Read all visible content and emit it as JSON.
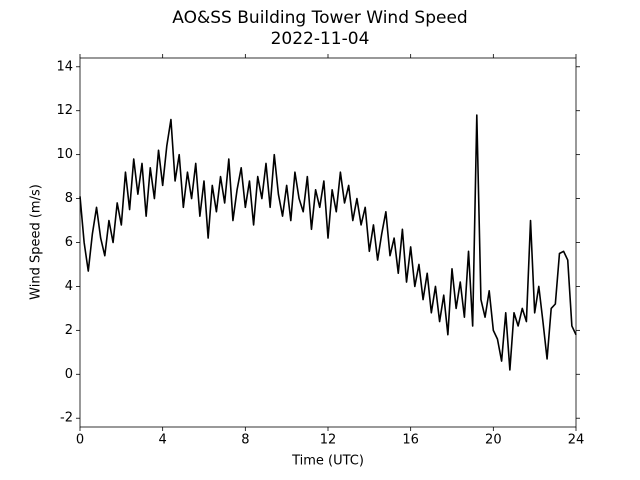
{
  "chart_data": {
    "type": "line",
    "title": "AO&SS Building Tower Wind Speed",
    "subtitle": "2022-11-04",
    "x_label": "Time (UTC)",
    "y_label": "Wind Speed (m/s)",
    "xlim": [
      0,
      24
    ],
    "xticks": [
      0,
      4,
      8,
      12,
      16,
      20,
      24
    ],
    "ylim": [
      -2.4,
      14.4
    ],
    "yticks": [
      -2,
      0,
      2,
      4,
      6,
      8,
      10,
      12,
      14
    ],
    "x": [
      0,
      0.2,
      0.4,
      0.6,
      0.8,
      1,
      1.2,
      1.4,
      1.6,
      1.8,
      2,
      2.2,
      2.4,
      2.6,
      2.8,
      3,
      3.2,
      3.4,
      3.6,
      3.8,
      4,
      4.2,
      4.4,
      4.6,
      4.8,
      5,
      5.2,
      5.4,
      5.6,
      5.8,
      6,
      6.2,
      6.4,
      6.6,
      6.8,
      7,
      7.2,
      7.4,
      7.6,
      7.8,
      8,
      8.2,
      8.4,
      8.6,
      8.8,
      9,
      9.2,
      9.4,
      9.6,
      9.8,
      10,
      10.2,
      10.4,
      10.6,
      10.8,
      11,
      11.2,
      11.4,
      11.6,
      11.8,
      12,
      12.2,
      12.4,
      12.6,
      12.8,
      13,
      13.2,
      13.4,
      13.6,
      13.8,
      14,
      14.2,
      14.4,
      14.6,
      14.8,
      15,
      15.2,
      15.4,
      15.6,
      15.8,
      16,
      16.2,
      16.4,
      16.6,
      16.8,
      17,
      17.2,
      17.4,
      17.6,
      17.8,
      18,
      18.2,
      18.4,
      18.6,
      18.8,
      19,
      19.2,
      19.4,
      19.6,
      19.8,
      20,
      20.2,
      20.4,
      20.6,
      20.8,
      21,
      21.2,
      21.4,
      21.6,
      21.8,
      22,
      22.2,
      22.4,
      22.6,
      22.8,
      23,
      23.2,
      23.4,
      23.6,
      23.8,
      24
    ],
    "series": [
      {
        "color": "#000000",
        "values": [
          8.1,
          6.0,
          4.7,
          6.4,
          7.6,
          6.2,
          5.4,
          7.0,
          6.0,
          7.8,
          6.8,
          9.2,
          7.5,
          9.8,
          8.2,
          9.6,
          7.2,
          9.4,
          8.0,
          10.2,
          8.6,
          10.4,
          11.6,
          8.8,
          10.0,
          7.6,
          9.2,
          8.0,
          9.6,
          7.2,
          8.8,
          6.2,
          8.6,
          7.4,
          9.0,
          7.8,
          9.8,
          7.0,
          8.4,
          9.4,
          7.6,
          8.8,
          6.8,
          9.0,
          8.0,
          9.6,
          7.6,
          10.0,
          8.2,
          7.2,
          8.6,
          7.0,
          9.2,
          8.0,
          7.4,
          9.0,
          6.6,
          8.4,
          7.6,
          8.8,
          6.2,
          8.4,
          7.4,
          9.2,
          7.8,
          8.6,
          7.0,
          8.0,
          6.8,
          7.6,
          5.6,
          6.8,
          5.2,
          6.4,
          7.4,
          5.4,
          6.2,
          4.6,
          6.6,
          4.2,
          5.8,
          4.0,
          5.0,
          3.4,
          4.6,
          2.8,
          4.0,
          2.4,
          3.6,
          1.8,
          4.8,
          3.0,
          4.2,
          2.6,
          5.6,
          2.2,
          11.8,
          3.4,
          2.6,
          3.8,
          2.0,
          1.6,
          0.6,
          2.8,
          0.2,
          2.8,
          2.2,
          3.0,
          2.4,
          7.0,
          2.8,
          4.0,
          2.4,
          0.7,
          3.0,
          3.2,
          5.5,
          5.6,
          5.2,
          2.2,
          1.8
        ]
      }
    ]
  }
}
